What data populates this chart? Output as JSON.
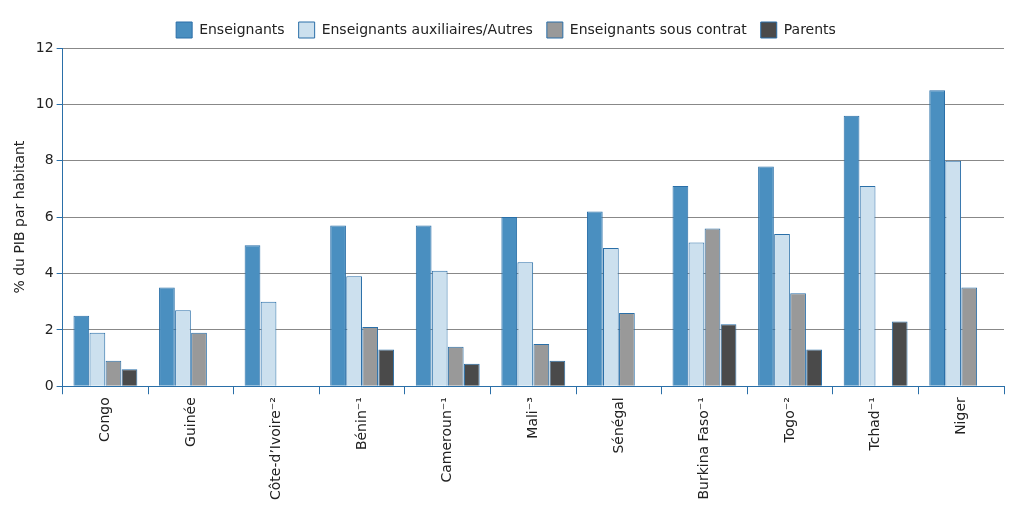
{
  "chart_data": {
    "type": "bar",
    "ylabel": "% du PIB par habitant",
    "categories": [
      "Congo",
      "Guinée",
      "Côte-d’Ivoire⁻²",
      "Bénin⁻¹",
      "Cameroun⁻¹",
      "Mali⁻³",
      "Sénégal",
      "Burkina Faso⁻¹",
      "Togo⁻²",
      "Tchad⁻¹",
      "Niger"
    ],
    "series": [
      {
        "name": "Enseignants",
        "color": "#4a8fc0",
        "values": [
          2.5,
          3.5,
          5.0,
          5.7,
          5.7,
          6.0,
          6.2,
          7.1,
          7.8,
          9.6,
          10.5
        ]
      },
      {
        "name": "Enseignants auxiliaires/Autres",
        "color": "#cce0ee",
        "values": [
          1.9,
          2.7,
          3.0,
          3.9,
          4.1,
          4.4,
          4.9,
          5.1,
          5.4,
          7.1,
          8.0
        ]
      },
      {
        "name": "Enseignants sous contrat",
        "color": "#999999",
        "values": [
          0.9,
          1.9,
          null,
          2.1,
          1.4,
          1.5,
          2.6,
          5.6,
          3.3,
          null,
          3.5
        ]
      },
      {
        "name": "Parents",
        "color": "#4a4a4a",
        "values": [
          0.6,
          null,
          null,
          1.3,
          0.8,
          0.9,
          null,
          2.2,
          1.3,
          2.3,
          null
        ]
      }
    ],
    "ylim": [
      0,
      12
    ],
    "yticks": [
      0,
      2,
      4,
      6,
      8,
      10,
      12
    ],
    "grid": "y",
    "legend": "top"
  }
}
